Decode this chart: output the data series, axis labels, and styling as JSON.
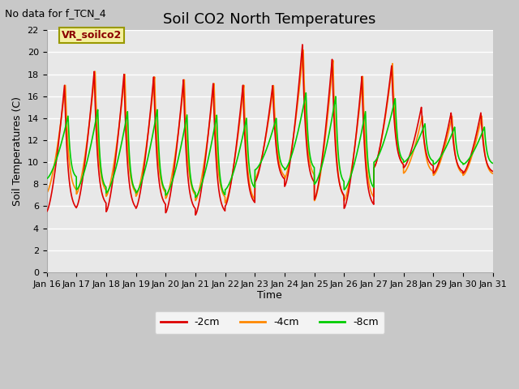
{
  "title": "Soil CO2 North Temperatures",
  "subtitle": "No data for f_TCN_4",
  "ylabel": "Soil Temperatures (C)",
  "xlabel": "Time",
  "annotation": "VR_soilco2",
  "ylim": [
    0,
    22
  ],
  "yticks": [
    0,
    2,
    4,
    6,
    8,
    10,
    12,
    14,
    16,
    18,
    20,
    22
  ],
  "xtick_labels": [
    "Jan 16",
    "Jan 17",
    "Jan 18",
    "Jan 19",
    "Jan 20",
    "Jan 21",
    "Jan 22",
    "Jan 23",
    "Jan 24",
    "Jan 25",
    "Jan 26",
    "Jan 27",
    "Jan 28",
    "Jan 29",
    "Jan 30",
    "Jan 31"
  ],
  "color_2cm": "#dd0000",
  "color_4cm": "#ff8800",
  "color_8cm": "#00cc00",
  "legend_labels": [
    "-2cm",
    "-4cm",
    "-8cm"
  ],
  "fig_bg_color": "#c8c8c8",
  "plot_bg_color": "#e8e8e8",
  "grid_color": "#ffffff",
  "title_fontsize": 13,
  "label_fontsize": 9,
  "tick_fontsize": 8,
  "subtitle_fontsize": 9,
  "linewidth": 1.2,
  "day_peaks_2cm": [
    17.0,
    18.3,
    18.0,
    17.8,
    17.5,
    17.2,
    17.0,
    17.0,
    20.7,
    19.4,
    17.8,
    18.8,
    15.0,
    14.5
  ],
  "day_peaks_4cm": [
    17.0,
    18.3,
    18.0,
    17.8,
    17.5,
    17.2,
    17.0,
    17.0,
    20.2,
    19.3,
    17.8,
    19.0,
    14.2,
    14.2
  ],
  "day_peaks_8cm": [
    14.2,
    14.8,
    14.6,
    14.8,
    14.3,
    14.3,
    14.0,
    14.0,
    16.3,
    16.0,
    14.6,
    15.8,
    13.5,
    13.2
  ],
  "day_mins_2cm": [
    5.5,
    5.9,
    5.5,
    5.8,
    5.4,
    5.2,
    6.0,
    8.2,
    7.8,
    6.6,
    5.8,
    9.5,
    9.5,
    9.0
  ],
  "day_mins_4cm": [
    7.2,
    7.1,
    6.9,
    6.9,
    6.7,
    6.5,
    6.3,
    8.5,
    8.5,
    6.5,
    6.5,
    9.5,
    9.0,
    8.8
  ],
  "day_mins_8cm": [
    8.5,
    7.5,
    7.2,
    7.2,
    7.0,
    6.8,
    7.5,
    9.3,
    9.3,
    8.0,
    7.5,
    10.0,
    10.0,
    9.8
  ]
}
